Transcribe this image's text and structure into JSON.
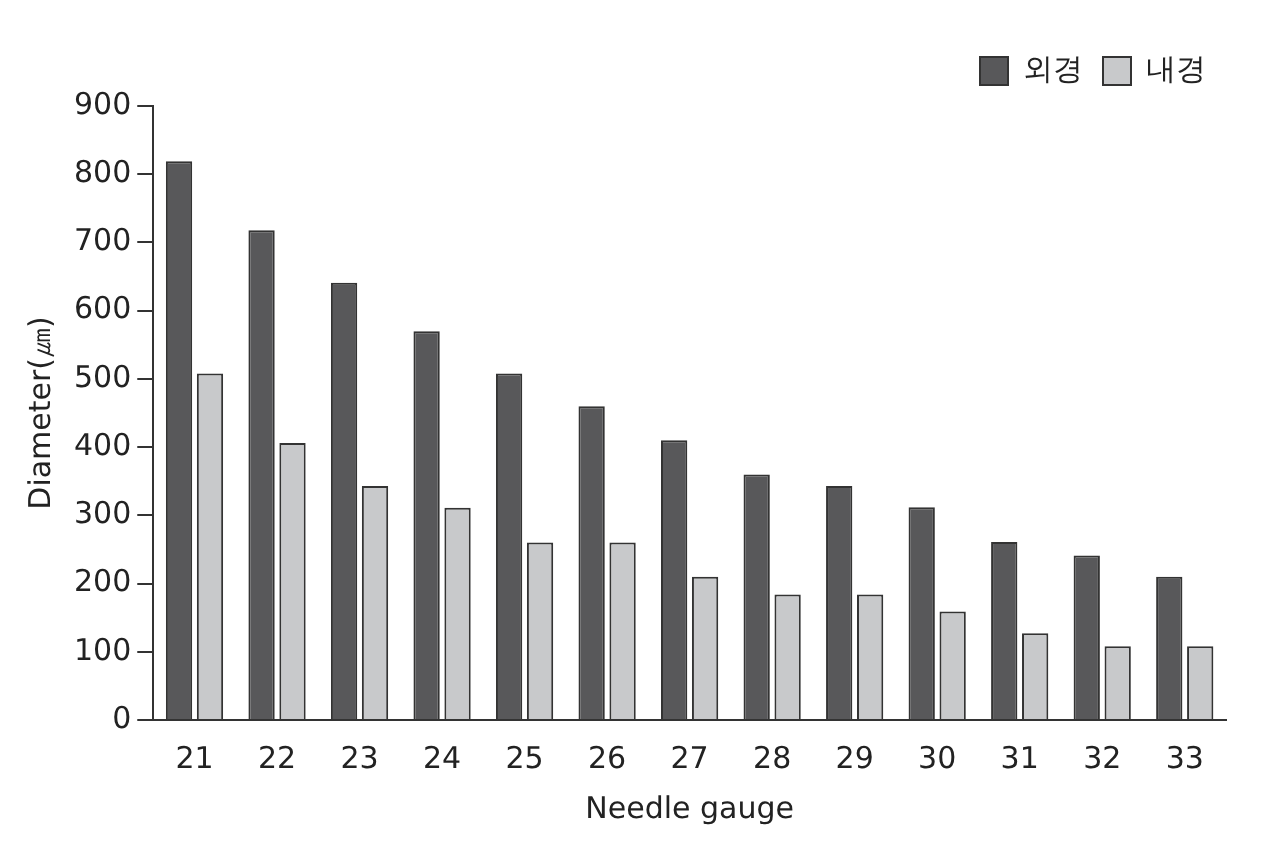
{
  "chart_data": {
    "type": "bar",
    "xlabel": "Needle gauge",
    "ylabel": "Diameter(㎛)",
    "categories": [
      "21",
      "22",
      "23",
      "24",
      "25",
      "26",
      "27",
      "28",
      "29",
      "30",
      "31",
      "32",
      "33"
    ],
    "series": [
      {
        "name": "외경",
        "color": "#58585a",
        "values": [
          819,
          718,
          641,
          570,
          508,
          460,
          410,
          360,
          343,
          312,
          261,
          241,
          210
        ]
      },
      {
        "name": "내경",
        "color": "#c8c9cb",
        "values": [
          508,
          406,
          343,
          311,
          260,
          260,
          210,
          184,
          184,
          159,
          127,
          108,
          108
        ]
      }
    ],
    "ylim": [
      0,
      900
    ],
    "yticks": [
      0,
      100,
      200,
      300,
      400,
      500,
      600,
      700,
      800,
      900
    ],
    "grid": false,
    "legend": "top right"
  }
}
